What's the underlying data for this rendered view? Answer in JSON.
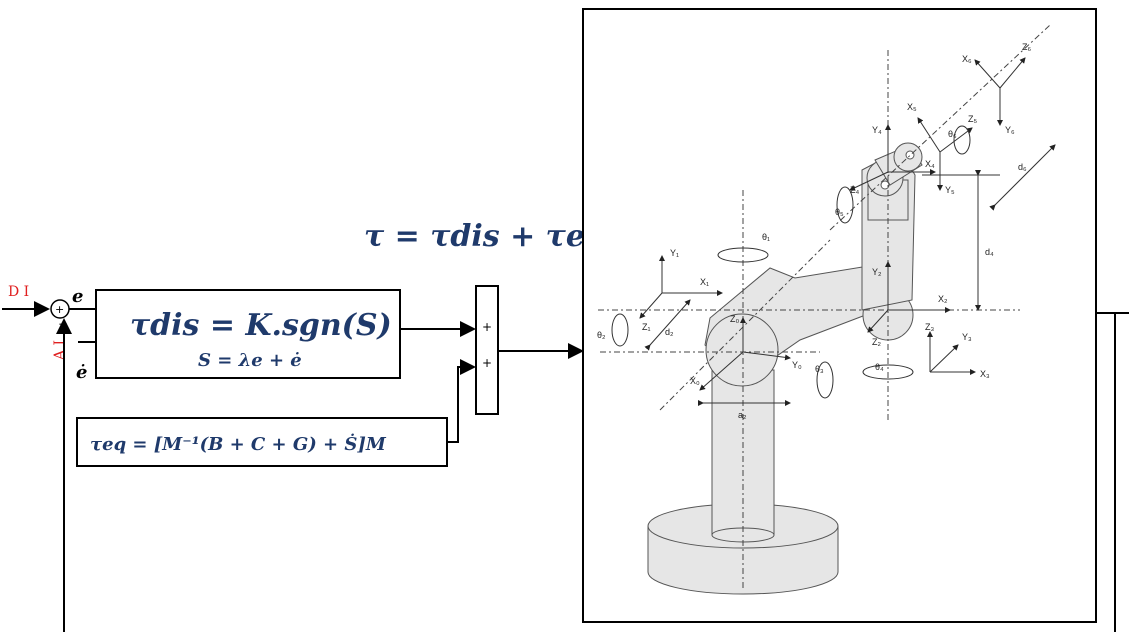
{
  "inputs": {
    "desired_input": "D I",
    "actual_input": "A I"
  },
  "signals": {
    "error": "e",
    "error_dot": "ė"
  },
  "summing_junction": {
    "plus": "+",
    "minus": "−"
  },
  "equations": {
    "total": "τ = τdis + τeq",
    "dis_main": "τdis = K.sgn(S)",
    "dis_sub": "S = λe + ė",
    "eq": "τeq = [M⁻¹(B + C + G) + Ṡ]M"
  },
  "adder": {
    "sign1": "+",
    "sign2": "+"
  },
  "robot_labels": {
    "X0": "X₀",
    "Y0": "Y₀",
    "Z0": "Z₀",
    "X1": "X₁",
    "Y1": "Y₁",
    "Z1": "Z₁",
    "X2": "X₂",
    "Y2": "Y₂",
    "Z2": "Z₂",
    "X3": "X₃",
    "Y3": "Y₃",
    "Z3": "Z₃",
    "X4": "X₄",
    "Y4": "Y₄",
    "Z4": "Z₄",
    "X5": "X₅",
    "Y5": "Y₅",
    "Z5": "Z₅",
    "X6": "X₆",
    "Y6": "Y₆",
    "Z6": "Z₆",
    "th1": "θ₁",
    "th2": "θ₂",
    "th3": "θ₃",
    "th4": "θ₄",
    "th5": "θ₅",
    "th6": "θ₆",
    "a2": "a₂",
    "d2": "d₂",
    "d4": "d₄",
    "d6": "d₆"
  }
}
